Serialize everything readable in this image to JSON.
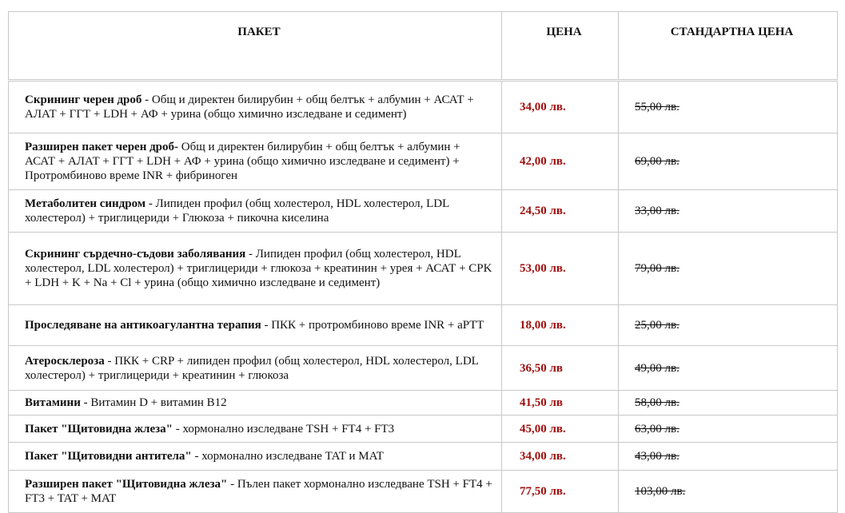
{
  "table": {
    "header": [
      "ПАКЕТ",
      "ЦЕНА",
      "СТАНДАРТНА ЦЕНА"
    ],
    "rows": [
      {
        "name": "Скрининг черен дроб",
        "description": "- Общ и директен билирубин + общ белтък + албумин + АСАТ + АЛАТ + ГГТ + LDH + АФ + урина (общо химично изследване и седимент)",
        "price": "34,00 лв.",
        "standard_price": "55,00 лв."
      },
      {
        "name": "Разширен пакет черен дроб-",
        "description": "Общ и директен билирубин + общ белтък + албумин + АСАТ + АЛАТ + ГГТ + LDH + АФ + урина (общо химично изследване и седимент) + Протромбиново време INR + фибриноген",
        "price": "42,00 лв.",
        "standard_price": "69,00 лв."
      },
      {
        "name": "Метаболитен синдром",
        "description": "- Липиден профил (общ холестерол, HDL холестерол, LDL холестерол) + триглицериди + Глюкоза + пикочна киселина",
        "price": "24,50 лв.",
        "standard_price": "33,00 лв."
      },
      {
        "name": "Скрининг сърдечно-съдови заболявания",
        "description": "- Липиден профил (общ холестерол, HDL холестерол, LDL холестерол) + триглицериди + глюкоза + креатинин + урея + АСАТ + CPK + LDH + K + Na + Cl + урина (общо химично изследване и седимент)",
        "price": "53,00 лв.",
        "standard_price": "79,00 лв."
      },
      {
        "name": "Проследяване на антикоагулантна терапия",
        "description": "- ПКК + протромбиново време INR + aPTT",
        "price": "18,00 лв.",
        "standard_price": "25,00 лв."
      },
      {
        "name": "Атеросклероза",
        "description": "- ПКК + CRP + липиден профил (общ холестерол, HDL холестерол, LDL холестерол) + триглицериди + креатинин + глюкоза",
        "price": "36,50 лв",
        "standard_price": "49,00 лв."
      },
      {
        "name": "Витамини",
        "description": "- Витамин D + витамин B12",
        "price": "41,50 лв",
        "standard_price": "58,00 лв."
      },
      {
        "name": "Пакет \"Щитовидна жлеза\"",
        "description": "- хормонално изследване TSH + FT4 + FT3",
        "price": "45,00 лв.",
        "standard_price": "63,00 лв."
      },
      {
        "name": "Пакет \"Щитовидни антитела\"",
        "description": "- хормонално изследване TAT и MAT",
        "price": "34,00 лв.",
        "standard_price": "43,00 лв."
      },
      {
        "name": "Разширен пакет \"Щитовидна жлеза\"",
        "description": "- Пълен пакет хормонално изследване TSH + FT4 + FT3 + TAT + MAT",
        "price": "77,50 лв.",
        "standard_price": "103,00 лв."
      }
    ]
  }
}
